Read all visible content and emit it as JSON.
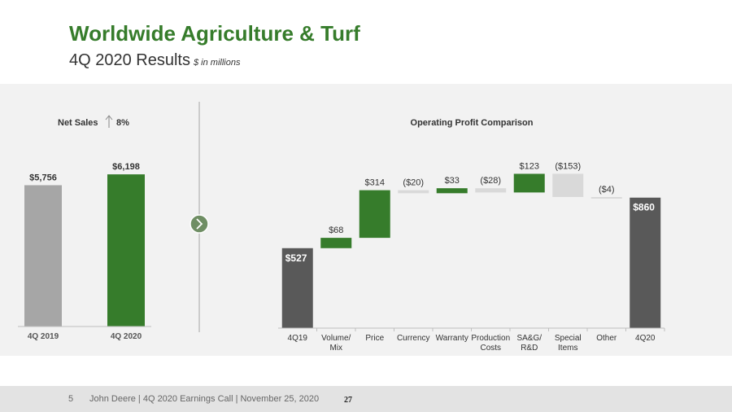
{
  "header": {
    "title": "Worldwide Agriculture & Turf",
    "subtitle": "4Q 2020 Results",
    "units": "$ in millions"
  },
  "footer": {
    "page_number": "5",
    "text": "John Deere | 4Q 2020 Earnings Call | November 25, 2020",
    "slide_number": "27"
  },
  "net_sales": {
    "label": "Net Sales",
    "change": "8%",
    "change_direction": "up"
  },
  "nav": {
    "next_icon": "chevron-right-icon"
  },
  "colors": {
    "green": "#367c2b",
    "dark_gray": "#595959",
    "light_gray_bar": "#a6a6a6",
    "neutral_bar": "#d9d9d9"
  },
  "chart_data": [
    {
      "type": "bar",
      "title": "",
      "categories": [
        "4Q 2019",
        "4Q 2020"
      ],
      "values": [
        5756,
        6198
      ],
      "value_labels": [
        "$5,756",
        "$6,198"
      ],
      "ylim": [
        0,
        6700
      ]
    },
    {
      "type": "bar",
      "subtype": "waterfall",
      "title": "Operating Profit Comparison",
      "categories": [
        "4Q19",
        "Volume/ Mix",
        "Price",
        "Currency",
        "Warranty",
        "Production Costs",
        "SA&G/ R&D",
        "Special Items",
        "Other",
        "4Q20"
      ],
      "values": [
        527,
        68,
        314,
        -20,
        33,
        -28,
        123,
        -153,
        -4,
        860
      ],
      "value_labels": [
        "$527",
        "$68",
        "$314",
        "($20)",
        "$33",
        "($28)",
        "$123",
        "($153)",
        "($4)",
        "$860"
      ],
      "kinds": [
        "total",
        "delta",
        "delta",
        "delta",
        "delta",
        "delta",
        "delta",
        "delta",
        "delta",
        "total"
      ],
      "ylim": [
        0,
        1100
      ]
    }
  ]
}
